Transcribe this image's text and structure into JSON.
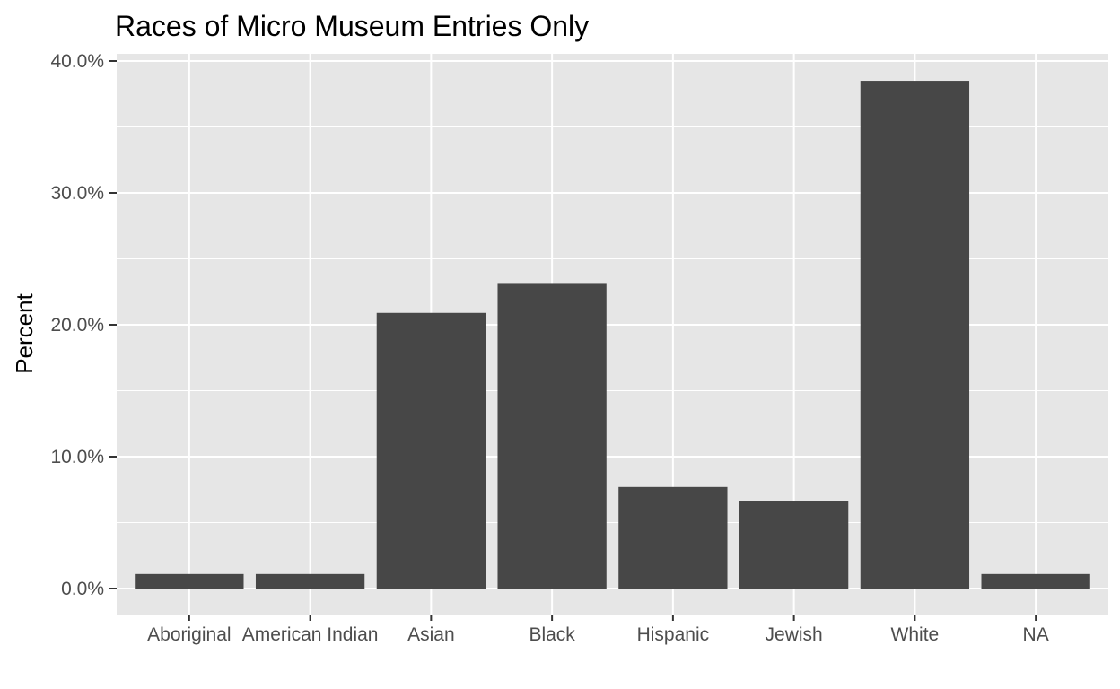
{
  "chart_data": {
    "type": "bar",
    "title": "Races of Micro Museum Entries Only",
    "xlabel": "",
    "ylabel": "Percent",
    "categories": [
      "Aboriginal",
      "American Indian",
      "Asian",
      "Black",
      "Hispanic",
      "Jewish",
      "White",
      "NA"
    ],
    "values": [
      1.1,
      1.1,
      20.9,
      23.1,
      7.7,
      6.6,
      38.5,
      1.1
    ],
    "ylim": [
      0,
      40
    ],
    "yticks": [
      0,
      10,
      20,
      30,
      40
    ],
    "ytick_labels": [
      "0.0%",
      "10.0%",
      "20.0%",
      "30.0%",
      "40.0%"
    ],
    "grid": true,
    "legend": "none",
    "colors": {
      "bar": "#474747",
      "panel": "#e6e6e6",
      "grid": "#ffffff",
      "tick_text": "#4d4d4d"
    }
  }
}
